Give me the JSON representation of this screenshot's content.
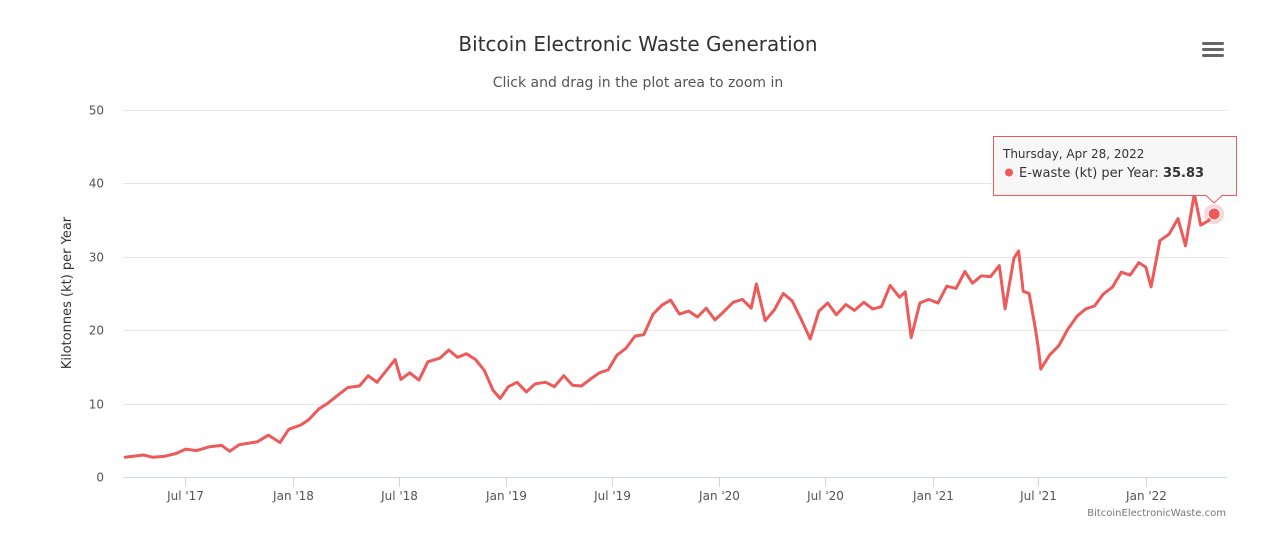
{
  "title": "Bitcoin Electronic Waste Generation",
  "subtitle": "Click and drag in the plot area to zoom in",
  "credit": "BitcoinElectronicWaste.com",
  "menu_icon": "hamburger-menu-icon",
  "colors": {
    "series": "#ee5a5a",
    "grid": "#e6e6e6",
    "axis": "#ccd6eb"
  },
  "tooltip": {
    "date": "Thursday, Apr 28, 2022",
    "series_label": "E-waste (kt) per Year: ",
    "value": "35.83"
  },
  "chart_data": {
    "type": "line",
    "title": "Bitcoin Electronic Waste Generation",
    "ylabel": "Kilotonnes (kt) per Year",
    "xlabel": "",
    "ylim": [
      0,
      50
    ],
    "yticks": [
      0,
      10,
      20,
      30,
      40,
      50
    ],
    "xlim": [
      "2017-03-16",
      "2022-05-20"
    ],
    "xticks": [
      {
        "date": "2017-07-01",
        "label": "Jul '17"
      },
      {
        "date": "2018-01-01",
        "label": "Jan '18"
      },
      {
        "date": "2018-07-01",
        "label": "Jul '18"
      },
      {
        "date": "2019-01-01",
        "label": "Jan '19"
      },
      {
        "date": "2019-07-01",
        "label": "Jul '19"
      },
      {
        "date": "2020-01-01",
        "label": "Jan '20"
      },
      {
        "date": "2020-07-01",
        "label": "Jul '20"
      },
      {
        "date": "2021-01-01",
        "label": "Jan '21"
      },
      {
        "date": "2021-07-01",
        "label": "Jul '21"
      },
      {
        "date": "2022-01-01",
        "label": "Jan '22"
      }
    ],
    "grid": true,
    "series": [
      {
        "name": "E-waste (kt) per Year",
        "highlight": {
          "x": "2022-04-28",
          "y": 35.83
        },
        "points": [
          [
            "2017-03-20",
            2.7
          ],
          [
            "2017-04-01",
            2.8
          ],
          [
            "2017-04-20",
            3.0
          ],
          [
            "2017-05-05",
            2.7
          ],
          [
            "2017-05-25",
            2.8
          ],
          [
            "2017-06-15",
            3.2
          ],
          [
            "2017-07-01",
            3.8
          ],
          [
            "2017-07-20",
            3.6
          ],
          [
            "2017-08-10",
            4.1
          ],
          [
            "2017-09-01",
            4.3
          ],
          [
            "2017-09-15",
            3.5
          ],
          [
            "2017-10-01",
            4.4
          ],
          [
            "2017-11-01",
            4.8
          ],
          [
            "2017-11-20",
            5.7
          ],
          [
            "2017-12-10",
            4.7
          ],
          [
            "2017-12-25",
            6.5
          ],
          [
            "2018-01-15",
            7.1
          ],
          [
            "2018-01-28",
            7.8
          ],
          [
            "2018-02-15",
            9.3
          ],
          [
            "2018-03-01",
            10.0
          ],
          [
            "2018-03-20",
            11.2
          ],
          [
            "2018-04-05",
            12.2
          ],
          [
            "2018-04-25",
            12.4
          ],
          [
            "2018-05-10",
            13.8
          ],
          [
            "2018-05-25",
            12.9
          ],
          [
            "2018-06-10",
            14.5
          ],
          [
            "2018-06-25",
            16.0
          ],
          [
            "2018-07-05",
            13.3
          ],
          [
            "2018-07-20",
            14.2
          ],
          [
            "2018-08-05",
            13.2
          ],
          [
            "2018-08-20",
            15.7
          ],
          [
            "2018-09-10",
            16.2
          ],
          [
            "2018-09-25",
            17.3
          ],
          [
            "2018-10-10",
            16.3
          ],
          [
            "2018-10-25",
            16.8
          ],
          [
            "2018-11-10",
            16.0
          ],
          [
            "2018-11-25",
            14.5
          ],
          [
            "2018-12-10",
            11.8
          ],
          [
            "2018-12-22",
            10.7
          ],
          [
            "2019-01-05",
            12.3
          ],
          [
            "2019-01-20",
            12.9
          ],
          [
            "2019-02-05",
            11.6
          ],
          [
            "2019-02-20",
            12.7
          ],
          [
            "2019-03-10",
            12.9
          ],
          [
            "2019-03-25",
            12.3
          ],
          [
            "2019-04-10",
            13.8
          ],
          [
            "2019-04-25",
            12.5
          ],
          [
            "2019-05-10",
            12.4
          ],
          [
            "2019-05-25",
            13.3
          ],
          [
            "2019-06-10",
            14.2
          ],
          [
            "2019-06-25",
            14.6
          ],
          [
            "2019-07-10",
            16.6
          ],
          [
            "2019-07-25",
            17.5
          ],
          [
            "2019-08-10",
            19.2
          ],
          [
            "2019-08-25",
            19.4
          ],
          [
            "2019-09-10",
            22.2
          ],
          [
            "2019-09-25",
            23.4
          ],
          [
            "2019-10-10",
            24.1
          ],
          [
            "2019-10-25",
            22.2
          ],
          [
            "2019-11-10",
            22.6
          ],
          [
            "2019-11-25",
            21.8
          ],
          [
            "2019-12-10",
            23.0
          ],
          [
            "2019-12-25",
            21.4
          ],
          [
            "2020-01-10",
            22.6
          ],
          [
            "2020-01-25",
            23.8
          ],
          [
            "2020-02-10",
            24.2
          ],
          [
            "2020-02-25",
            23.0
          ],
          [
            "2020-03-05",
            26.3
          ],
          [
            "2020-03-20",
            21.3
          ],
          [
            "2020-04-05",
            22.8
          ],
          [
            "2020-04-20",
            25.0
          ],
          [
            "2020-05-05",
            24.0
          ],
          [
            "2020-05-20",
            21.6
          ],
          [
            "2020-06-05",
            18.8
          ],
          [
            "2020-06-20",
            22.6
          ],
          [
            "2020-07-05",
            23.7
          ],
          [
            "2020-07-20",
            22.1
          ],
          [
            "2020-08-05",
            23.5
          ],
          [
            "2020-08-20",
            22.7
          ],
          [
            "2020-09-05",
            23.8
          ],
          [
            "2020-09-20",
            22.9
          ],
          [
            "2020-10-05",
            23.2
          ],
          [
            "2020-10-20",
            26.1
          ],
          [
            "2020-11-05",
            24.5
          ],
          [
            "2020-11-15",
            25.2
          ],
          [
            "2020-11-25",
            19.0
          ],
          [
            "2020-12-10",
            23.7
          ],
          [
            "2020-12-25",
            24.2
          ],
          [
            "2021-01-10",
            23.7
          ],
          [
            "2021-01-25",
            26.0
          ],
          [
            "2021-02-10",
            25.7
          ],
          [
            "2021-02-25",
            28.0
          ],
          [
            "2021-03-10",
            26.4
          ],
          [
            "2021-03-25",
            27.4
          ],
          [
            "2021-04-10",
            27.3
          ],
          [
            "2021-04-25",
            28.8
          ],
          [
            "2021-05-05",
            22.9
          ],
          [
            "2021-05-20",
            29.8
          ],
          [
            "2021-05-28",
            30.8
          ],
          [
            "2021-06-05",
            25.3
          ],
          [
            "2021-06-15",
            25.0
          ],
          [
            "2021-06-25",
            20.6
          ],
          [
            "2021-07-01",
            17.5
          ],
          [
            "2021-07-05",
            14.7
          ],
          [
            "2021-07-20",
            16.6
          ],
          [
            "2021-08-05",
            17.9
          ],
          [
            "2021-08-20",
            20.1
          ],
          [
            "2021-09-05",
            21.9
          ],
          [
            "2021-09-20",
            22.9
          ],
          [
            "2021-10-05",
            23.3
          ],
          [
            "2021-10-20",
            24.9
          ],
          [
            "2021-11-05",
            25.9
          ],
          [
            "2021-11-20",
            27.9
          ],
          [
            "2021-12-05",
            27.5
          ],
          [
            "2021-12-20",
            29.2
          ],
          [
            "2022-01-01",
            28.6
          ],
          [
            "2022-01-10",
            25.9
          ],
          [
            "2022-01-25",
            32.2
          ],
          [
            "2022-02-10",
            33.1
          ],
          [
            "2022-02-25",
            35.2
          ],
          [
            "2022-03-10",
            31.5
          ],
          [
            "2022-03-25",
            38.6
          ],
          [
            "2022-04-05",
            34.3
          ],
          [
            "2022-04-18",
            34.9
          ],
          [
            "2022-04-28",
            35.83
          ]
        ]
      }
    ]
  }
}
